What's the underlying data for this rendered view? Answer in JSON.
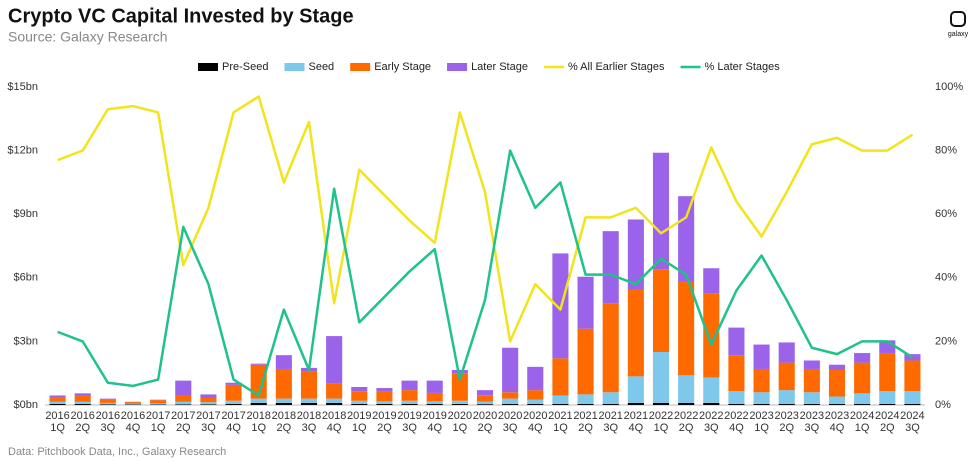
{
  "chart_data": {
    "type": "bar",
    "title": "Crypto VC Capital Invested by Stage",
    "subtitle": "Source: Galaxy Research",
    "source": "Data: Pitchbook Data, Inc., Galaxy Research",
    "logo": "galaxy",
    "stacked": true,
    "grid": false,
    "legend": "top",
    "categories": [
      "2016 1Q",
      "2016 2Q",
      "2016 3Q",
      "2016 4Q",
      "2017 1Q",
      "2017 2Q",
      "2017 3Q",
      "2017 4Q",
      "2018 1Q",
      "2018 2Q",
      "2018 3Q",
      "2018 4Q",
      "2019 1Q",
      "2019 2Q",
      "2019 3Q",
      "2019 4Q",
      "2020 1Q",
      "2020 2Q",
      "2020 3Q",
      "2020 4Q",
      "2021 1Q",
      "2021 2Q",
      "2021 3Q",
      "2021 4Q",
      "2022 1Q",
      "2022 2Q",
      "2022 3Q",
      "2022 4Q",
      "2023 1Q",
      "2023 2Q",
      "2023 3Q",
      "2023 4Q",
      "2024 1Q",
      "2024 2Q",
      "2024 3Q"
    ],
    "ylim": [
      0,
      15
    ],
    "yticks": [
      {
        "value": 0,
        "label": "$0bn"
      },
      {
        "value": 3,
        "label": "$3bn"
      },
      {
        "value": 6,
        "label": "$6bn"
      },
      {
        "value": 9,
        "label": "$9bn"
      },
      {
        "value": 12,
        "label": "$12bn"
      },
      {
        "value": 15,
        "label": "$15bn"
      }
    ],
    "y2lim": [
      0,
      100
    ],
    "y2ticks": [
      {
        "value": 0,
        "label": "0%"
      },
      {
        "value": 20,
        "label": "20%"
      },
      {
        "value": 40,
        "label": "40%"
      },
      {
        "value": 60,
        "label": "60%"
      },
      {
        "value": 80,
        "label": "80%"
      },
      {
        "value": 100,
        "label": "100%"
      }
    ],
    "series": [
      {
        "name": "Pre-Seed",
        "type": "bar",
        "color": "#000000",
        "values": [
          0.05,
          0.05,
          0.03,
          0.02,
          0.02,
          0.03,
          0.03,
          0.05,
          0.1,
          0.1,
          0.1,
          0.1,
          0.05,
          0.05,
          0.05,
          0.05,
          0.05,
          0.04,
          0.05,
          0.05,
          0.05,
          0.05,
          0.05,
          0.1,
          0.1,
          0.1,
          0.1,
          0.05,
          0.05,
          0.05,
          0.05,
          0.05,
          0.05,
          0.05,
          0.05
        ]
      },
      {
        "name": "Seed",
        "type": "bar",
        "color": "#7ec8ec",
        "values": [
          0.1,
          0.1,
          0.07,
          0.04,
          0.06,
          0.12,
          0.1,
          0.15,
          0.2,
          0.2,
          0.2,
          0.2,
          0.15,
          0.12,
          0.15,
          0.12,
          0.15,
          0.12,
          0.25,
          0.2,
          0.4,
          0.45,
          0.55,
          1.25,
          2.4,
          1.3,
          1.2,
          0.6,
          0.55,
          0.65,
          0.55,
          0.35,
          0.5,
          0.6,
          0.6
        ]
      },
      {
        "name": "Early Stage",
        "type": "bar",
        "color": "#ff6a00",
        "values": [
          0.2,
          0.3,
          0.18,
          0.08,
          0.15,
          0.3,
          0.2,
          0.75,
          1.6,
          1.4,
          1.3,
          0.7,
          0.45,
          0.45,
          0.5,
          0.4,
          1.3,
          0.3,
          0.3,
          0.45,
          1.75,
          3.1,
          4.2,
          4.1,
          3.9,
          4.4,
          3.95,
          1.7,
          1.1,
          1.3,
          1.1,
          1.25,
          1.45,
          1.8,
          1.45
        ]
      },
      {
        "name": "Later Stage",
        "type": "bar",
        "color": "#9a63ea",
        "values": [
          0.1,
          0.1,
          0.02,
          0.01,
          0.02,
          0.7,
          0.17,
          0.1,
          0.05,
          0.65,
          0.15,
          2.25,
          0.2,
          0.18,
          0.45,
          0.58,
          0.15,
          0.24,
          2.1,
          1.1,
          4.95,
          2.45,
          3.4,
          3.3,
          5.5,
          4.05,
          1.2,
          1.3,
          1.15,
          0.95,
          0.4,
          0.25,
          0.45,
          0.6,
          0.3
        ]
      },
      {
        "name": "% All Earlier Stages",
        "type": "line",
        "axis": "y2",
        "color": "#f2e41c",
        "values": [
          77,
          80,
          93,
          94,
          92,
          44,
          62,
          92,
          97,
          70,
          89,
          32,
          74,
          66,
          58,
          51,
          92,
          67,
          20,
          38,
          30,
          59,
          59,
          62,
          54,
          59,
          81,
          64,
          53,
          67,
          82,
          84,
          80,
          80,
          85
        ]
      },
      {
        "name": "% Later Stages",
        "type": "line",
        "axis": "y2",
        "color": "#1fc28a",
        "values": [
          23,
          20,
          7,
          6,
          8,
          56,
          38,
          8,
          3,
          30,
          11,
          68,
          26,
          34,
          42,
          49,
          8,
          33,
          80,
          62,
          70,
          41,
          41,
          38,
          46,
          41,
          19,
          36,
          47,
          33,
          18,
          16,
          20,
          20,
          15
        ]
      }
    ]
  }
}
